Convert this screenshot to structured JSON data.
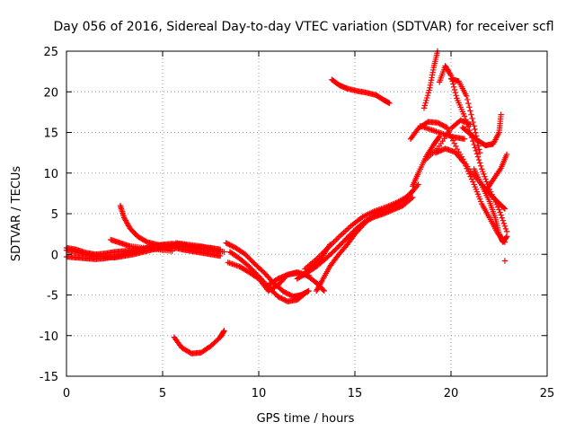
{
  "chart_data": {
    "type": "scatter",
    "title": "Day 056 of 2016, Sidereal Day-to-day VTEC variation (SDTVAR) for receiver scfl",
    "xlabel": "GPS time / hours",
    "ylabel": "SDTVAR / TECUs",
    "xlim": [
      0,
      25
    ],
    "ylim": [
      -15,
      25
    ],
    "xticks": [
      "0",
      "5",
      "10",
      "15",
      "20",
      "25"
    ],
    "yticks": [
      "-15",
      "-10",
      "-5",
      "0",
      "5",
      "10",
      "15",
      "20",
      "25"
    ],
    "grid": true,
    "marker": "plus",
    "color": "#ff0000",
    "series": [
      {
        "points": [
          [
            0,
            0.5
          ],
          [
            0.5,
            0.3
          ],
          [
            1,
            0
          ],
          [
            1.5,
            -0.2
          ],
          [
            2,
            -0.3
          ],
          [
            2.5,
            -0.4
          ],
          [
            3,
            -0.2
          ],
          [
            3.5,
            0
          ],
          [
            4,
            0.3
          ],
          [
            4.5,
            0.6
          ],
          [
            5,
            0.8
          ],
          [
            5.5,
            0.9
          ],
          [
            6,
            0.6
          ],
          [
            6.5,
            0.4
          ],
          [
            7,
            0.2
          ],
          [
            7.5,
            0
          ],
          [
            8,
            -0.2
          ]
        ]
      },
      {
        "points": [
          [
            0,
            -0.3
          ],
          [
            0.5,
            -0.4
          ],
          [
            1,
            -0.5
          ],
          [
            1.5,
            -0.6
          ],
          [
            2,
            -0.5
          ],
          [
            2.5,
            -0.3
          ],
          [
            3,
            0
          ],
          [
            3.5,
            0.3
          ],
          [
            4,
            0.5
          ],
          [
            4.5,
            0.8
          ],
          [
            5,
            1
          ],
          [
            5.5,
            1.1
          ],
          [
            6,
            1
          ],
          [
            6.5,
            0.8
          ],
          [
            7,
            0.6
          ],
          [
            7.5,
            0.5
          ],
          [
            8.2,
            0.3
          ]
        ]
      },
      {
        "points": [
          [
            0,
            0.8
          ],
          [
            0.5,
            0.6
          ],
          [
            1,
            0.2
          ],
          [
            1.5,
            0
          ],
          [
            2,
            0.1
          ],
          [
            2.5,
            0.3
          ],
          [
            3,
            0.4
          ],
          [
            3.5,
            0.5
          ],
          [
            4,
            0.7
          ],
          [
            4.5,
            1
          ],
          [
            5,
            1.2
          ],
          [
            5.5,
            1.3
          ],
          [
            6,
            1.2
          ],
          [
            6.5,
            1
          ],
          [
            7,
            0.9
          ],
          [
            7.5,
            0.8
          ],
          [
            8,
            0.6
          ]
        ]
      },
      {
        "points": [
          [
            2.8,
            6
          ],
          [
            3,
            4.5
          ],
          [
            3.3,
            3.2
          ],
          [
            3.7,
            2.2
          ],
          [
            4.2,
            1.5
          ],
          [
            4.7,
            1.2
          ],
          [
            5.2,
            1
          ]
        ]
      },
      {
        "points": [
          [
            2.3,
            1.8
          ],
          [
            2.8,
            1.4
          ],
          [
            3.3,
            1
          ],
          [
            4,
            0.8
          ],
          [
            4.8,
            0.6
          ],
          [
            5.5,
            0.4
          ]
        ]
      },
      {
        "points": [
          [
            5.7,
            1.4
          ],
          [
            6.3,
            1.2
          ],
          [
            7,
            1
          ],
          [
            7.5,
            0.7
          ],
          [
            8,
            0.3
          ]
        ]
      },
      {
        "points": [
          [
            5.6,
            -10.2
          ],
          [
            6,
            -11.5
          ],
          [
            6.5,
            -12.2
          ],
          [
            7,
            -12.1
          ],
          [
            7.5,
            -11.3
          ],
          [
            8,
            -10.2
          ],
          [
            8.2,
            -9.4
          ]
        ]
      },
      {
        "points": [
          [
            8.3,
            1.4
          ],
          [
            8.8,
            0.8
          ],
          [
            9.3,
            0
          ],
          [
            9.8,
            -1.2
          ],
          [
            10.3,
            -2.3
          ],
          [
            10.8,
            -3.6
          ],
          [
            11.3,
            -4.6
          ],
          [
            11.8,
            -5.2
          ],
          [
            12.2,
            -5
          ],
          [
            12.6,
            -4.5
          ]
        ]
      },
      {
        "points": [
          [
            8.5,
            0.3
          ],
          [
            9,
            -0.5
          ],
          [
            9.5,
            -1.5
          ],
          [
            10,
            -2.7
          ],
          [
            10.5,
            -4
          ],
          [
            11,
            -5.2
          ],
          [
            11.5,
            -5.8
          ],
          [
            12,
            -5.6
          ],
          [
            12.4,
            -4.8
          ]
        ]
      },
      {
        "points": [
          [
            8.4,
            -1
          ],
          [
            9,
            -1.5
          ],
          [
            9.5,
            -2.2
          ],
          [
            10,
            -3
          ],
          [
            10.5,
            -4.5
          ],
          [
            11,
            -3.8
          ],
          [
            11.5,
            -2.5
          ],
          [
            12,
            -2.2
          ],
          [
            12.6,
            -2.6
          ]
        ]
      },
      {
        "points": [
          [
            10.5,
            -3.8
          ],
          [
            11,
            -3
          ],
          [
            11.5,
            -2.5
          ],
          [
            12,
            -2.3
          ],
          [
            12.5,
            -2.6
          ],
          [
            13,
            -3.5
          ],
          [
            13.4,
            -4.5
          ]
        ]
      },
      {
        "points": [
          [
            12,
            -3
          ],
          [
            12.5,
            -2.3
          ],
          [
            13,
            -1.5
          ],
          [
            13.5,
            -0.5
          ],
          [
            14,
            0.6
          ],
          [
            14.5,
            1.8
          ],
          [
            15,
            3
          ],
          [
            15.5,
            4
          ],
          [
            16,
            4.6
          ],
          [
            16.5,
            5
          ],
          [
            17,
            5.5
          ],
          [
            17.5,
            6
          ],
          [
            18,
            7
          ]
        ]
      },
      {
        "points": [
          [
            12.4,
            -1.8
          ],
          [
            13,
            -0.6
          ],
          [
            13.6,
            0.8
          ],
          [
            14.2,
            2.2
          ],
          [
            14.8,
            3.5
          ],
          [
            15.4,
            4.6
          ],
          [
            16,
            5.3
          ],
          [
            16.6,
            5.8
          ],
          [
            17.2,
            6.4
          ],
          [
            17.8,
            7.2
          ],
          [
            18.3,
            8.6
          ]
        ]
      },
      {
        "points": [
          [
            13,
            -4.5
          ],
          [
            13.3,
            -3.2
          ],
          [
            13.7,
            -1.5
          ],
          [
            14.1,
            -0.2
          ],
          [
            14.6,
            1.2
          ],
          [
            15,
            2.5
          ],
          [
            15.5,
            3.8
          ],
          [
            16,
            4.9
          ],
          [
            16.5,
            5.5
          ],
          [
            17,
            6
          ],
          [
            17.5,
            6.6
          ],
          [
            18,
            7.8
          ]
        ]
      },
      {
        "points": [
          [
            12.3,
            -2.5
          ],
          [
            12.8,
            -1.5
          ],
          [
            13.3,
            -0.3
          ],
          [
            13.7,
            1.2
          ]
        ]
      },
      {
        "points": [
          [
            13.8,
            21.5
          ],
          [
            14.2,
            20.8
          ],
          [
            14.6,
            20.4
          ],
          [
            15.1,
            20.1
          ],
          [
            15.6,
            19.9
          ],
          [
            16.1,
            19.6
          ],
          [
            16.5,
            19
          ],
          [
            16.8,
            18.6
          ]
        ]
      },
      {
        "points": [
          [
            18,
            8.4
          ],
          [
            18.3,
            10
          ],
          [
            18.7,
            12
          ],
          [
            19.1,
            13.5
          ],
          [
            19.4,
            14.5
          ]
        ]
      },
      {
        "points": [
          [
            17.9,
            14.2
          ],
          [
            18.3,
            15.5
          ],
          [
            18.8,
            16.3
          ],
          [
            19.3,
            16.2
          ],
          [
            19.8,
            15.6
          ]
        ]
      },
      {
        "points": [
          [
            18.6,
            18
          ],
          [
            18.9,
            20.5
          ],
          [
            19.1,
            23
          ],
          [
            19.3,
            25
          ]
        ]
      },
      {
        "points": [
          [
            18.6,
            11.5
          ],
          [
            19.3,
            13
          ],
          [
            20,
            15.5
          ],
          [
            20.5,
            16.5
          ],
          [
            21,
            16
          ]
        ]
      },
      {
        "points": [
          [
            18.4,
            15.8
          ],
          [
            19,
            15.3
          ],
          [
            19.6,
            14.8
          ],
          [
            20.2,
            14.4
          ],
          [
            20.7,
            14.2
          ]
        ]
      },
      {
        "points": [
          [
            19.4,
            21.2
          ],
          [
            19.7,
            23.2
          ],
          [
            20,
            22
          ],
          [
            20.3,
            19.2
          ],
          [
            20.7,
            17
          ],
          [
            21.2,
            13.5
          ],
          [
            21.6,
            10.5
          ],
          [
            22,
            8
          ],
          [
            22.5,
            5.5
          ],
          [
            22.9,
            2.8
          ]
        ]
      },
      {
        "points": [
          [
            20,
            21.6
          ],
          [
            20.4,
            21.3
          ],
          [
            20.8,
            19.5
          ],
          [
            21.2,
            15.8
          ],
          [
            21.5,
            12.5
          ]
        ]
      },
      {
        "points": [
          [
            19.2,
            12.5
          ],
          [
            19.7,
            13
          ],
          [
            20.2,
            12.6
          ],
          [
            20.7,
            11.2
          ],
          [
            21.2,
            8.6
          ],
          [
            21.6,
            6.2
          ],
          [
            22,
            4.5
          ],
          [
            22.4,
            2.7
          ],
          [
            22.8,
            1.5
          ]
        ]
      },
      {
        "points": [
          [
            19.8,
            15.4
          ],
          [
            20.4,
            12.6
          ],
          [
            21,
            10.2
          ],
          [
            21.6,
            8.6
          ],
          [
            22,
            7.5
          ],
          [
            22.4,
            6.5
          ],
          [
            22.8,
            5.6
          ]
        ]
      },
      {
        "points": [
          [
            20.6,
            15.6
          ],
          [
            21,
            14.8
          ],
          [
            21.4,
            14
          ],
          [
            21.8,
            13.4
          ],
          [
            22.2,
            13.6
          ],
          [
            22.5,
            15
          ],
          [
            22.6,
            17.2
          ]
        ]
      },
      {
        "points": [
          [
            21.8,
            7.8
          ],
          [
            22.2,
            9.2
          ],
          [
            22.6,
            10.6
          ],
          [
            22.9,
            12.3
          ]
        ]
      },
      {
        "points": [
          [
            21.2,
            10.5
          ],
          [
            21.6,
            8.5
          ],
          [
            22,
            6.5
          ],
          [
            22.3,
            4.5
          ],
          [
            22.5,
            2.5
          ],
          [
            22.7,
            1.5
          ],
          [
            22.9,
            2.2
          ]
        ]
      },
      {
        "points": [
          [
            22.8,
            -0.8
          ]
        ]
      }
    ]
  }
}
